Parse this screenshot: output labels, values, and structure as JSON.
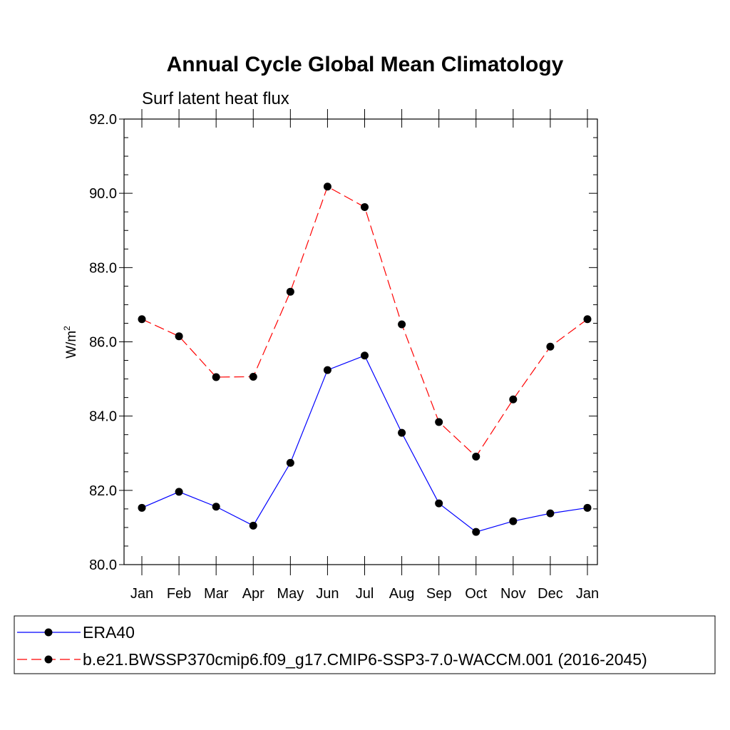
{
  "chart_data": {
    "type": "line",
    "title": "Annual Cycle Global Mean Climatology",
    "subtitle": "Surf latent heat flux",
    "ylabel": "W/m",
    "ylabel_superscript": "2",
    "xlabel": "",
    "categories": [
      "Jan",
      "Feb",
      "Mar",
      "Apr",
      "May",
      "Jun",
      "Jul",
      "Aug",
      "Sep",
      "Oct",
      "Nov",
      "Dec",
      "Jan"
    ],
    "ylim": [
      80.0,
      92.0
    ],
    "yticks": [
      "80.0",
      "82.0",
      "84.0",
      "86.0",
      "88.0",
      "90.0",
      "92.0"
    ],
    "ytick_values": [
      80,
      82,
      84,
      86,
      88,
      90,
      92
    ],
    "grid": false,
    "legend_position": "bottom",
    "series": [
      {
        "name": "ERA40",
        "color": "#0000ff",
        "dashed": false,
        "marker": "filled-circle",
        "values": [
          81.53,
          81.96,
          81.56,
          81.05,
          82.74,
          85.24,
          85.63,
          83.55,
          81.65,
          80.88,
          81.17,
          81.38,
          81.53
        ]
      },
      {
        "name": "b.e21.BWSSP370cmip6.f09_g17.CMIP6-SSP3-7.0-WACCM.001 (2016-2045)",
        "color": "#ff0000",
        "dashed": true,
        "marker": "filled-circle",
        "values": [
          86.61,
          86.15,
          85.05,
          85.06,
          87.35,
          90.18,
          89.63,
          86.47,
          83.84,
          82.91,
          84.45,
          85.87,
          86.61
        ]
      }
    ]
  }
}
